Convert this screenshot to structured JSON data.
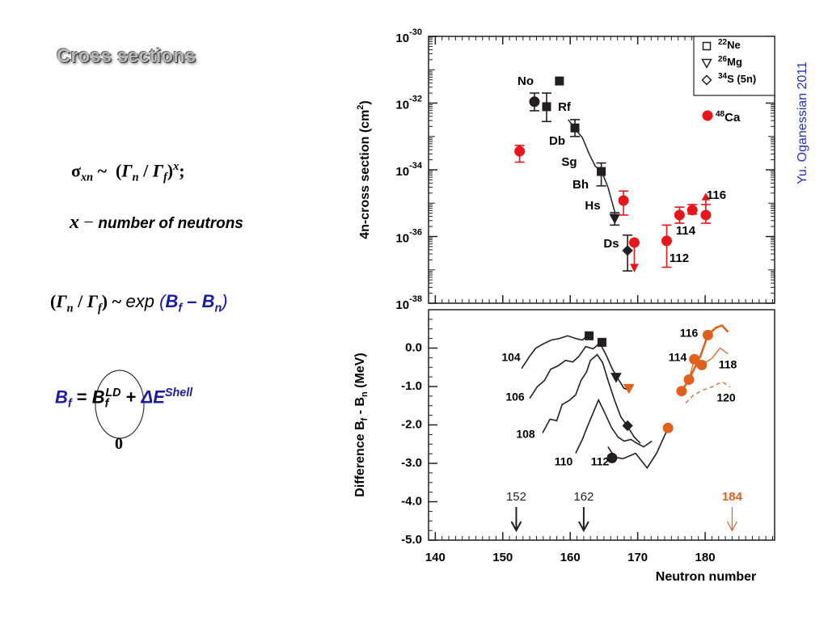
{
  "slide": {
    "title": "Cross sections",
    "author": "Yu. Oganessian 2011",
    "eq1": [
      "σ",
      "xn",
      " ~  (",
      "Γ",
      "n",
      " / ",
      "Γ",
      "f",
      ")",
      "x",
      ";"
    ],
    "eq2": [
      "x",
      " − ",
      "number of neutrons"
    ],
    "eq3": [
      "(",
      "Γ",
      "n",
      " / ",
      "Γ",
      "f",
      ") ~ ",
      "exp",
      " (",
      "B",
      "f",
      " – ",
      "B",
      "n",
      ")"
    ],
    "eq4": [
      "B",
      "f",
      " = ",
      "B",
      "f",
      "LD",
      " + ",
      "ΔE",
      "Shell"
    ],
    "eq4_note": "0"
  },
  "chart_data": [
    {
      "type": "scatter",
      "log_y": true,
      "xlim": [
        139,
        190.3
      ],
      "ylim": [
        1e-38,
        1e-30
      ],
      "yticks": [
        {
          "value": 1e-30,
          "label": "10-30"
        },
        {
          "value": 1e-32,
          "label": "10-32"
        },
        {
          "value": 1e-34,
          "label": "10-34"
        },
        {
          "value": 1e-36,
          "label": "10-36"
        },
        {
          "value": 1e-38,
          "label": "10-38"
        }
      ],
      "ylabel": [
        "4n-cross section  (cm",
        "2",
        ")"
      ],
      "series": [
        {
          "name": "22Ne",
          "marker": "square",
          "color": "#231f20",
          "legend": "box",
          "x": [
            156.5,
            158.4,
            160.7,
            164.6
          ],
          "values": [
            7.8e-33,
            4.6e-32,
            1.8e-33,
            8.9e-35
          ],
          "lower": [
            2.8e-33,
            null,
            1e-33,
            3.3e-35
          ],
          "upper": [
            2e-32,
            null,
            3.2e-33,
            1.6e-34
          ]
        },
        {
          "name": "26Mg",
          "marker": "triangle",
          "color": "#231f20",
          "legend": "box",
          "x": [
            166.6
          ],
          "values": [
            3.5e-36
          ],
          "lower": [
            2.2e-36
          ],
          "upper": [
            5.2e-36
          ]
        },
        {
          "name": "34S (5n)",
          "marker": "diamond",
          "color": "#231f20",
          "legend": "box",
          "x": [
            168.5
          ],
          "values": [
            3.8e-37
          ],
          "lower": [
            9.3e-38
          ],
          "upper": [
            1.1e-36
          ]
        },
        {
          "name": "48Ca",
          "marker": "circle",
          "color": "#e8161b",
          "legend": "label",
          "x": [
            152.5,
            167.9,
            169.5,
            174.3,
            176.2,
            178.1,
            180.1
          ],
          "values": [
            3.6e-34,
            1.2e-35,
            6.6e-37,
            7.4e-37,
            4.4e-36,
            6.2e-36,
            4.4e-36
          ],
          "lower": [
            1.7e-34,
            4.4e-36,
            9.3e-38,
            1.2e-37,
            2.5e-36,
            4.7e-36,
            2.5e-36
          ],
          "upper": [
            5.4e-34,
            2.3e-35,
            6.6e-37,
            2.2e-36,
            7.6e-36,
            9.1e-36,
            9.1e-36
          ],
          "limits": [
            null,
            null,
            "down",
            null,
            null,
            null,
            "up"
          ]
        },
        {
          "marker": "circle",
          "color": "#231f20",
          "x": [
            154.7
          ],
          "values": [
            1.1e-32
          ],
          "lower": [
            5.9e-33
          ],
          "upper": [
            2e-32
          ]
        },
        {
          "line": "solid",
          "width": 1.5,
          "color": "#231f20",
          "x": [
            159.7,
            160.8,
            161.8,
            162.8,
            163.7,
            164.8,
            165.6,
            166.6
          ],
          "values": [
            3.2e-33,
            1.6e-33,
            9.3e-34,
            3e-34,
            1.3e-34,
            7.6e-35,
            3e-35,
            5.5e-36
          ]
        }
      ],
      "labels": [
        "No",
        "Rf",
        "Db",
        "Sg",
        "Bh",
        "Hs",
        "Ds"
      ],
      "z_labels": [
        112,
        114,
        116
      ]
    },
    {
      "type": "line",
      "xlim": [
        139,
        190.3
      ],
      "ylim": [
        -5,
        1
      ],
      "xticks": [
        140,
        150,
        160,
        170,
        180
      ],
      "yticks": [
        {
          "value": 0,
          "label": "0.0"
        },
        {
          "value": -1,
          "label": "-1.0"
        },
        {
          "value": -2,
          "label": "-2.0"
        },
        {
          "value": -3,
          "label": "-3.0"
        },
        {
          "value": -4,
          "label": "-4.0"
        },
        {
          "value": -5,
          "label": "-5.0"
        }
      ],
      "xlabel": "Neutron number",
      "ylabel": [
        "Difference  B",
        "f",
        " - B",
        "n",
        "  (MeV)"
      ],
      "series": [
        {
          "line": "solid",
          "width": 1.6,
          "color": "#231f20",
          "x": [
            152.8,
            154.0,
            154.9,
            156.0,
            157.2,
            158.4,
            159.6,
            160.8,
            161.8,
            162.8
          ],
          "values": [
            -0.53,
            -0.21,
            0,
            0.11,
            0.21,
            0.25,
            0.32,
            0.25,
            0.21,
            0.36
          ]
        },
        {
          "line": "solid",
          "width": 1.6,
          "color": "#231f20",
          "x": [
            154.0,
            155.1,
            156.2,
            157.1,
            158.2,
            159.3,
            160.4,
            161.3,
            162.3,
            163.4,
            164.4,
            165.4,
            166.2,
            167.1,
            168.0,
            168.7
          ],
          "values": [
            -1.31,
            -1.01,
            -0.84,
            -0.55,
            -0.46,
            -0.32,
            -0.36,
            -0.21,
            0.04,
            -0.02,
            0.13,
            -0.21,
            -0.53,
            -0.8,
            -1.05,
            -1.09
          ]
        },
        {
          "line": "solid",
          "width": 1.6,
          "color": "#231f20",
          "x": [
            155.9,
            157.0,
            158.0,
            158.8,
            159.8,
            160.8,
            161.6,
            162.4,
            163.0,
            164.0,
            164.8,
            165.6,
            166.6,
            167.5,
            168.5,
            169.5,
            170.4
          ],
          "values": [
            -2.21,
            -1.85,
            -1.89,
            -1.47,
            -1.37,
            -1.22,
            -0.84,
            -0.63,
            -0.32,
            -0.17,
            -0.38,
            -0.84,
            -1.37,
            -1.79,
            -2.04,
            -2.32,
            -2.48
          ]
        },
        {
          "line": "solid",
          "width": 1.6,
          "color": "#231f20",
          "x": [
            160.8,
            161.8,
            162.5,
            163.2,
            164.2,
            165.1,
            166.1,
            167.1,
            168.0,
            169.0,
            169.9,
            170.9,
            172.1
          ],
          "values": [
            -2.74,
            -2.38,
            -2.06,
            -1.77,
            -1.35,
            -1.68,
            -2.06,
            -2.32,
            -2.42,
            -2.38,
            -2.48,
            -2.57,
            -2.42
          ]
        },
        {
          "line": "solid",
          "width": 1.6,
          "color": "#231f20",
          "x": [
            165.6,
            166.6,
            167.8,
            169.7,
            171.4,
            172.8,
            174.5
          ],
          "values": [
            -2.57,
            -2.84,
            -2.88,
            -2.74,
            -3.12,
            -2.74,
            -2.08
          ]
        },
        {
          "line": "solid",
          "width": 2.6,
          "color": "#e0601c",
          "x": [
            176.5,
            177.6,
            179.3,
            180.4,
            181.6,
            182.5,
            183.4
          ],
          "values": [
            -1.12,
            -0.82,
            -0.21,
            0.34,
            0.53,
            0.59,
            0.42
          ]
        },
        {
          "line": "solid",
          "width": 1.3,
          "color": "#e0601c",
          "x": [
            177.6,
            178.4,
            179.5,
            181.0,
            182.2,
            183.4
          ],
          "values": [
            -0.82,
            -0.29,
            -0.44,
            -0.27,
            0,
            -0.15
          ]
        },
        {
          "line": "dashed",
          "width": 1.3,
          "color": "#e0601c",
          "x": [
            177.1,
            178.3,
            179.7,
            181.0,
            182.5,
            183.7
          ],
          "values": [
            -1.43,
            -1.22,
            -1.09,
            -1.01,
            -0.88,
            -1.01
          ]
        },
        {
          "marker": "square",
          "color": "#231f20",
          "x": [
            162.8,
            164.7
          ],
          "values": [
            0.32,
            0.15
          ]
        },
        {
          "marker": "triangle",
          "color": "#231f20",
          "x": [
            166.8
          ],
          "values": [
            -0.76
          ]
        },
        {
          "marker": "triangle",
          "color": "#e0601c",
          "x": [
            168.7
          ],
          "values": [
            -1.05
          ]
        },
        {
          "marker": "diamond",
          "color": "#231f20",
          "x": [
            168.5
          ],
          "values": [
            -2.02
          ]
        },
        {
          "marker": "circle",
          "color": "#231f20",
          "x": [
            166.2
          ],
          "values": [
            -2.86
          ]
        },
        {
          "marker": "circle",
          "color": "#e0601c",
          "x": [
            174.5,
            176.5,
            177.6,
            178.4,
            179.5,
            180.4
          ],
          "values": [
            -2.08,
            -1.12,
            -0.82,
            -0.29,
            -0.44,
            0.34
          ]
        }
      ],
      "curve_labels": [
        104,
        106,
        108,
        110,
        112,
        114,
        116,
        118,
        120
      ],
      "magic_numbers": [
        152,
        162,
        184
      ],
      "magic_colors": [
        "#231f20",
        "#231f20",
        "#e0601c"
      ]
    }
  ]
}
